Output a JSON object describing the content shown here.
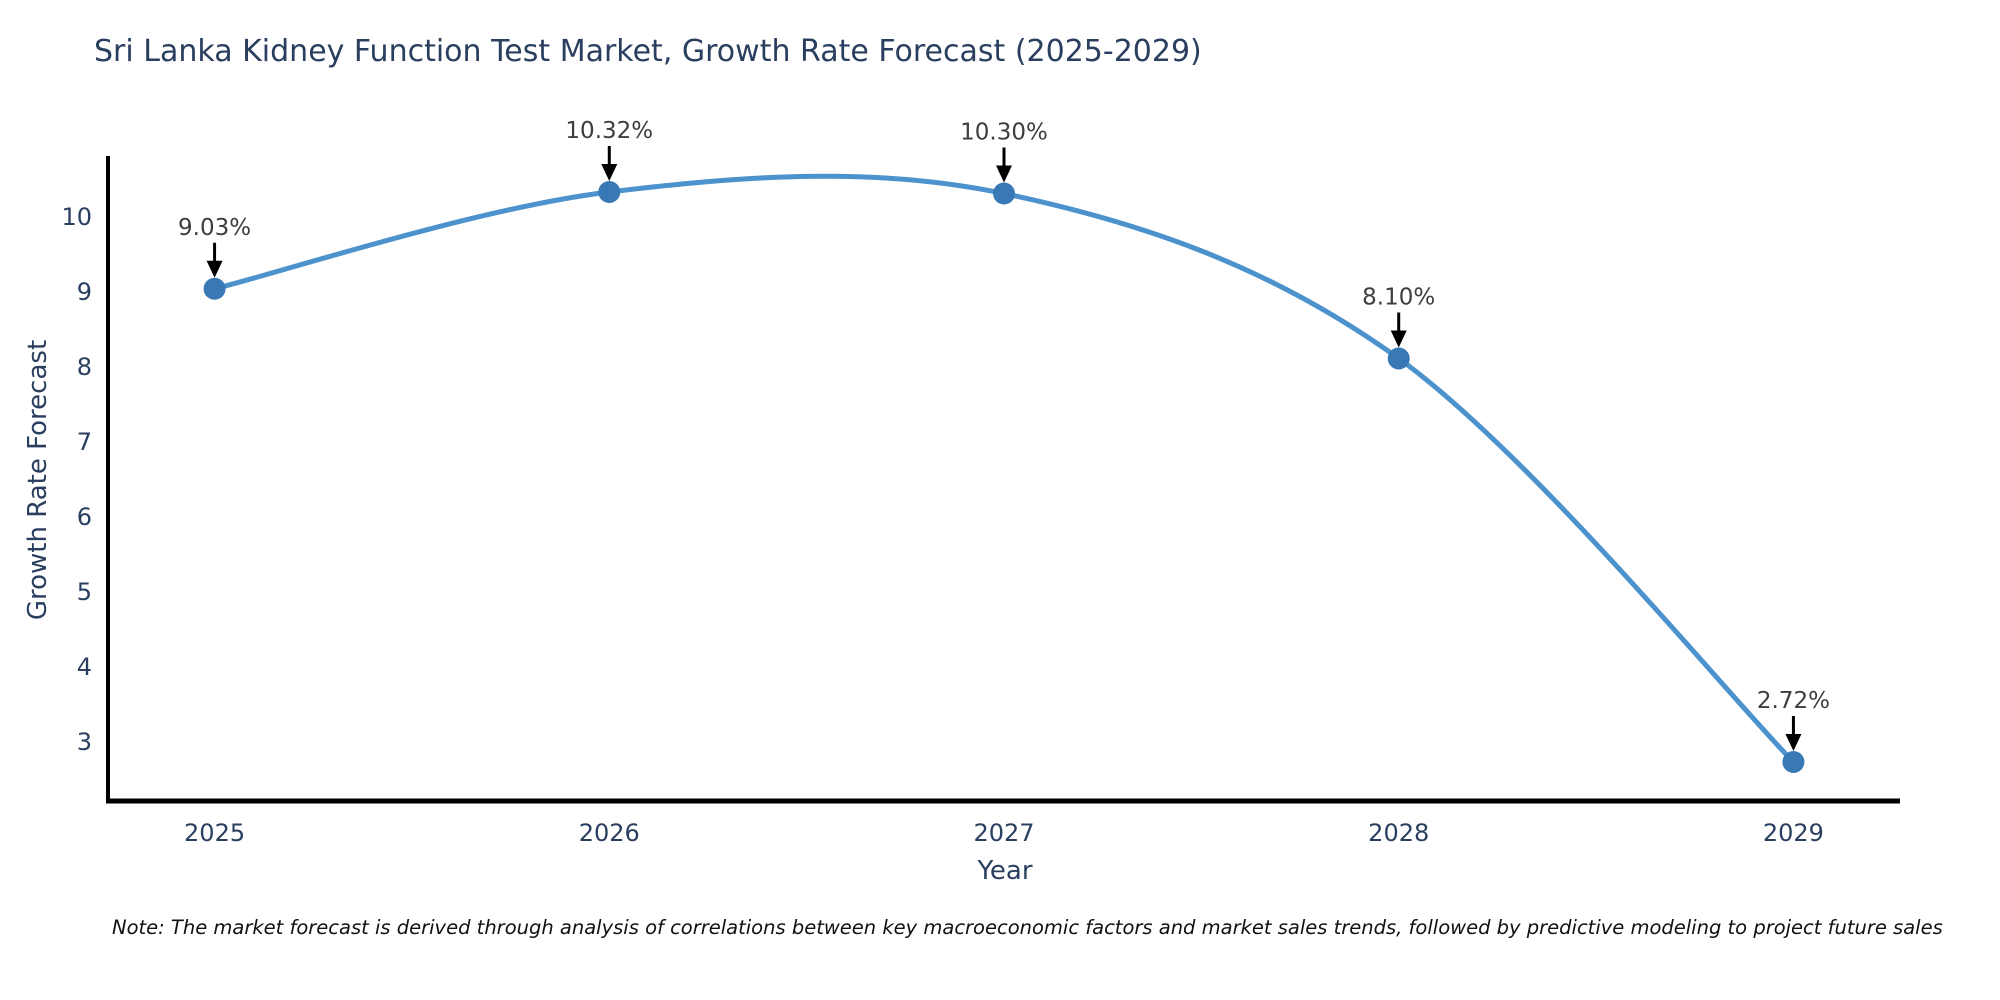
{
  "title": "Sri Lanka Kidney Function Test Market, Growth Rate Forecast (2025-2029)",
  "note": "Note: The market forecast is derived through analysis of correlations between key macroeconomic factors and market sales trends, followed by predictive modeling to project future sales",
  "chart_data": {
    "type": "line",
    "title": "Sri Lanka Kidney Function Test Market, Growth Rate Forecast (2025-2029)",
    "xlabel": "Year",
    "ylabel": "Growth Rate Forecast",
    "x": [
      2025,
      2026,
      2027,
      2028,
      2029
    ],
    "series": [
      {
        "name": "Growth Rate Forecast",
        "values": [
          9.03,
          10.32,
          10.3,
          8.1,
          2.72
        ],
        "point_labels": [
          "9.03%",
          "10.32%",
          "10.30%",
          "8.10%",
          "2.72%"
        ]
      }
    ],
    "xticks": [
      "2025",
      "2026",
      "2027",
      "2028",
      "2029"
    ],
    "yticks": [
      3,
      4,
      5,
      6,
      7,
      8,
      9,
      10
    ],
    "xlim": [
      2024.73,
      2029.27
    ],
    "ylim": [
      2.2,
      10.8
    ],
    "line_style": "spline",
    "markers": true,
    "annotations_arrows": true,
    "grid": false,
    "legend_position": "none",
    "colors": {
      "line": "#4c92cc",
      "marker": "#3878b4",
      "axis": "#000000",
      "tick_text": "#2a3f5f",
      "annotation_text": "#3d3d3d",
      "arrow": "#000000",
      "title_text": "#2a3f5f"
    }
  }
}
